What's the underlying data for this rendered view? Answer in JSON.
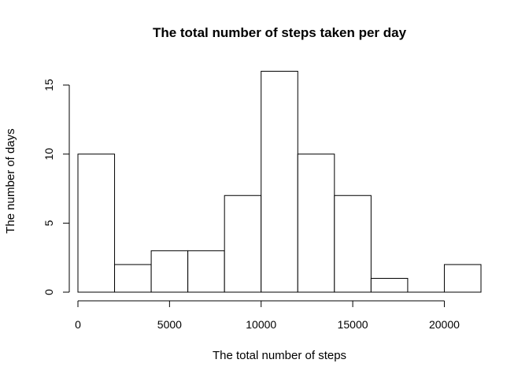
{
  "chart_data": {
    "type": "bar",
    "title": "The total number of steps taken per day",
    "xlabel": "The total number of steps",
    "ylabel": "The number of days",
    "bin_edges": [
      0,
      2000,
      4000,
      6000,
      8000,
      10000,
      12000,
      14000,
      16000,
      18000,
      20000,
      22000
    ],
    "values": [
      10,
      2,
      3,
      3,
      7,
      16,
      10,
      7,
      1,
      0,
      2
    ],
    "xlim": [
      0,
      22000
    ],
    "ylim": [
      0,
      16
    ],
    "x_ticks": [
      0,
      5000,
      10000,
      15000,
      20000
    ],
    "x_tick_labels": [
      "0",
      "5000",
      "10000",
      "15000",
      "20000"
    ],
    "y_ticks": [
      0,
      5,
      10,
      15
    ],
    "y_tick_labels": [
      "0",
      "5",
      "10",
      "15"
    ],
    "grid": false,
    "legend": "none",
    "colors": {
      "bar_fill": "#ffffff",
      "bar_stroke": "#000000"
    }
  }
}
